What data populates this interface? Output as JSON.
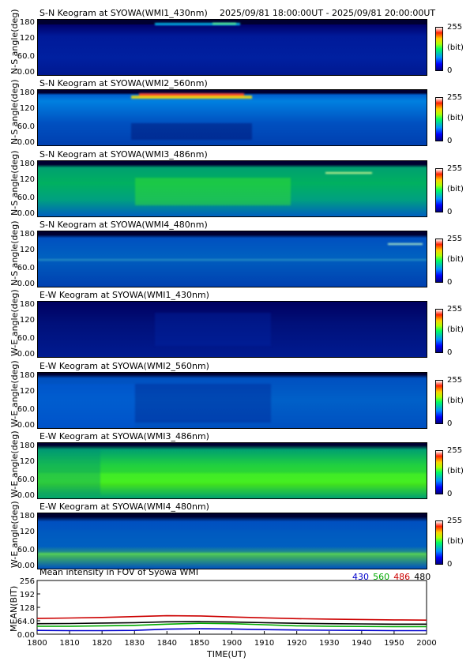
{
  "header": {
    "first_title": "S-N Keogram at SYOWA(WMI1_430nm)",
    "time_range": "2025/09/81 18:00:00UT - 2025/09/81 20:00:00UT"
  },
  "keograms": [
    {
      "title": "S-N Keogram at SYOWA(WMI1_430nm)",
      "ylabel": "N-S angle(deg)",
      "yticks": [
        "180",
        "120",
        "60.0",
        "0.00"
      ]
    },
    {
      "title": "S-N Keogram at SYOWA(WMI2_560nm)",
      "ylabel": "N-S angle(deg)",
      "yticks": [
        "180",
        "120",
        "60.0",
        "0.00"
      ]
    },
    {
      "title": "S-N Keogram at SYOWA(WMI3_486nm)",
      "ylabel": "N-S angle(deg)",
      "yticks": [
        "180",
        "120",
        "60.0",
        "0.00"
      ]
    },
    {
      "title": "S-N Keogram at SYOWA(WMI4_480nm)",
      "ylabel": "N-S angle(deg)",
      "yticks": [
        "180",
        "120",
        "60.0",
        "0.00"
      ]
    },
    {
      "title": "E-W Keogram at SYOWA(WMI1_430nm)",
      "ylabel": "W-E angle(deg)",
      "yticks": [
        "180",
        "120",
        "60.0",
        "0.00"
      ]
    },
    {
      "title": "E-W Keogram at SYOWA(WMI2_560nm)",
      "ylabel": "W-E angle(deg)",
      "yticks": [
        "180",
        "120",
        "60.0",
        "0.00"
      ]
    },
    {
      "title": "E-W Keogram at SYOWA(WMI3_486nm)",
      "ylabel": "W-E angle(deg)",
      "yticks": [
        "180",
        "120",
        "60.0",
        "0.00"
      ]
    },
    {
      "title": "E-W Keogram at SYOWA(WMI4_480nm)",
      "ylabel": "W-E angle(deg)",
      "yticks": [
        "180",
        "120",
        "60.0",
        "0.00"
      ]
    }
  ],
  "colorbar": {
    "max": "255",
    "unit": "(bit)",
    "min": "0"
  },
  "mean_panel": {
    "title": "Mean intensity in FOV of Syowa WMI",
    "legend": [
      {
        "label": "430",
        "color": "#0000cc"
      },
      {
        "label": "560",
        "color": "#00aa00"
      },
      {
        "label": "486",
        "color": "#cc0000"
      },
      {
        "label": "480",
        "color": "#000000"
      }
    ],
    "ylabel": "MEAN(BIT)",
    "xlabel": "TIME(UT)"
  },
  "chart_data": {
    "type": "line",
    "title": "Mean intensity in FOV of Syowa WMI",
    "xlabel": "TIME(UT)",
    "ylabel": "MEAN(BIT)",
    "xlim": [
      1800,
      2000
    ],
    "ylim": [
      0,
      256
    ],
    "xticks": [
      "1800",
      "1810",
      "1820",
      "1830",
      "1840",
      "1850",
      "1900",
      "1910",
      "1920",
      "1930",
      "1940",
      "1950",
      "2000"
    ],
    "yticks": [
      "0.00",
      "64.0",
      "128",
      "192",
      "256"
    ],
    "x": [
      1800,
      1810,
      1820,
      1830,
      1840,
      1850,
      1900,
      1910,
      1920,
      1930,
      1940,
      1950,
      2000
    ],
    "series": [
      {
        "name": "430",
        "color": "#0000cc",
        "values": [
          18,
          17,
          17,
          18,
          24,
          26,
          25,
          22,
          20,
          19,
          18,
          17,
          17
        ]
      },
      {
        "name": "560",
        "color": "#00aa00",
        "values": [
          38,
          38,
          40,
          42,
          48,
          52,
          50,
          45,
          40,
          38,
          37,
          36,
          36
        ]
      },
      {
        "name": "486",
        "color": "#cc0000",
        "values": [
          75,
          77,
          80,
          84,
          88,
          87,
          82,
          78,
          74,
          72,
          70,
          68,
          67
        ]
      },
      {
        "name": "480",
        "color": "#000000",
        "values": [
          50,
          51,
          53,
          55,
          59,
          60,
          58,
          55,
          52,
          50,
          49,
          48,
          48
        ]
      }
    ],
    "grid": false
  }
}
